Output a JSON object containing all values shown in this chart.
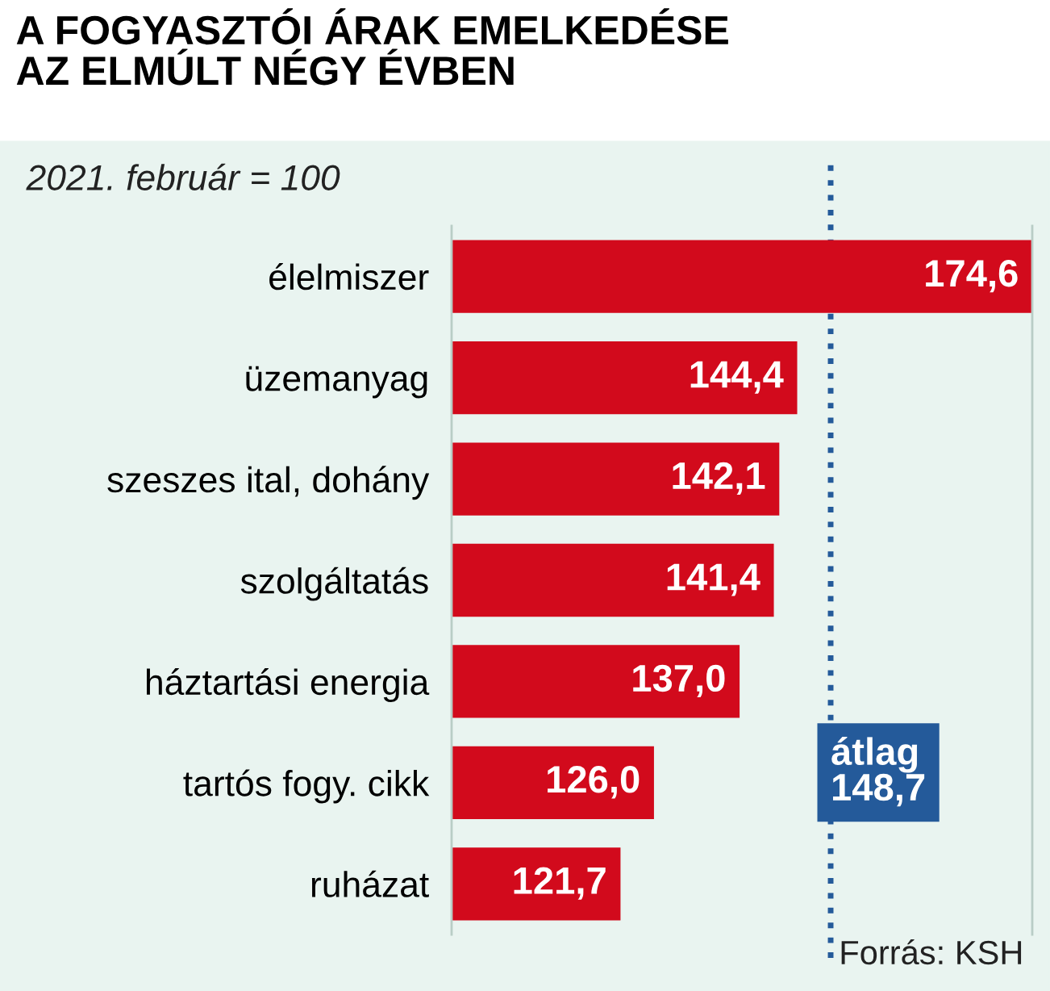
{
  "chart_data": {
    "type": "bar",
    "orientation": "horizontal",
    "title": "A FOGYASZTÓI ÁRAK EMELKEDÉSE\nAZ ELMÚLT NÉGY ÉVBEN",
    "subtitle": "2021. február = 100",
    "categories": [
      "élelmiszer",
      "üzemanyag",
      "szeszes ital, dohány",
      "szolgáltatás",
      "háztartási energia",
      "tartós fogy. cikk",
      "ruházat"
    ],
    "values": [
      174.6,
      144.4,
      142.1,
      141.4,
      137.0,
      126.0,
      121.7
    ],
    "value_labels": [
      "174,6",
      "144,4",
      "142,1",
      "141,4",
      "137,0",
      "126,0",
      "121,7"
    ],
    "color": "#d20a1c",
    "xlim": [
      100,
      174.6
    ],
    "tick_labels": "y",
    "grid": false,
    "legend": false,
    "ref_lines": [
      {
        "axis": "x",
        "value": 148.7,
        "label": "átlag\n148,7",
        "color": "#245a9a",
        "line_style": "dotted"
      }
    ],
    "annotations": [
      "Forrás: KSH"
    ]
  }
}
